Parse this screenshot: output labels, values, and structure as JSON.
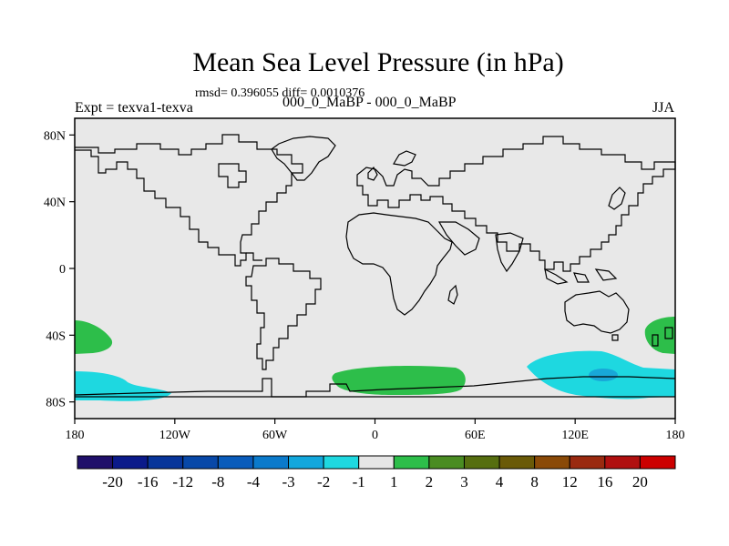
{
  "title": "Mean Sea Level Pressure (in hPa)",
  "stats": "rmsd= 0.396055 diff= 0.0010376",
  "experiment": "Expt = texva1-texva",
  "subtitle": "000_0_MaBP - 000_0_MaBP",
  "season": "JJA",
  "map": {
    "background_color": "#e8e8e8",
    "lon_ticks": [
      "180",
      "120W",
      "60W",
      "0",
      "60E",
      "120E",
      "180"
    ],
    "lat_ticks": [
      "80N",
      "40N",
      "0",
      "40S",
      "80S"
    ],
    "anomalies": [
      {
        "name": "anomaly-southwest-pacific-green",
        "color": "#2dbe4a",
        "value_range": "1 to 2"
      },
      {
        "name": "anomaly-south-pacific-cyan",
        "color": "#1ed8e0",
        "value_range": "-2 to -1"
      },
      {
        "name": "anomaly-south-atlantic-green",
        "color": "#2dbe4a",
        "value_range": "1 to 2"
      },
      {
        "name": "anomaly-south-indian-cyan",
        "color": "#1ed8e0",
        "value_range": "-2 to -1"
      },
      {
        "name": "anomaly-south-indian-blue-core",
        "color": "#18a8d8",
        "value_range": "-3 to -2"
      },
      {
        "name": "anomaly-new-zealand-green",
        "color": "#2dbe4a",
        "value_range": "1 to 2"
      }
    ]
  },
  "colorbar": {
    "colors": [
      "#20106a",
      "#0b1a8a",
      "#08359a",
      "#0848a8",
      "#0a5cbb",
      "#0b7acb",
      "#12a7dc",
      "#1ed8e0",
      "#e6e6e6",
      "#2dbe4a",
      "#4a8c22",
      "#566e10",
      "#6a5a08",
      "#8a4a08",
      "#9a2a10",
      "#b01010",
      "#cc0000"
    ],
    "labels": [
      "-20",
      "-16",
      "-12",
      "-8",
      "-4",
      "-3",
      "-2",
      "-1",
      "1",
      "2",
      "3",
      "4",
      "8",
      "12",
      "16",
      "20"
    ]
  }
}
